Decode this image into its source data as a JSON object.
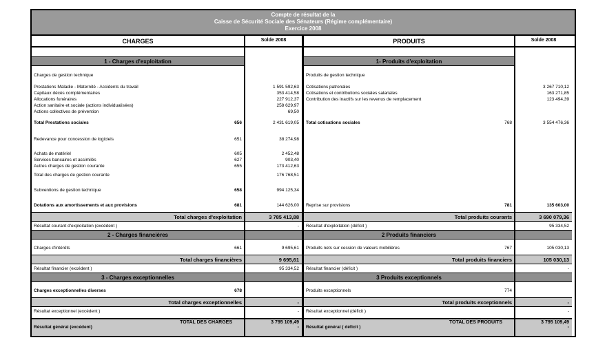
{
  "title": {
    "line1": "Compte de résultat de la",
    "line2": "Caisse de Sécurité Sociale des Sénateurs (Régime complémentaire)",
    "line3": "Exercice 2008"
  },
  "columns": {
    "charges": "CHARGES",
    "solde_left": "Solde 2008",
    "produits": "PRODUITS",
    "solde_right": "Solde 2008"
  },
  "colors": {
    "title_bg": "#9a9a9a",
    "section_bg": "#8f8f8f",
    "total_bg": "#c8c8c8",
    "border": "#000000"
  },
  "rows": [
    {
      "t": "gap",
      "h": 13
    },
    {
      "t": "section",
      "h": 14,
      "full": false,
      "l": {
        "label": "1 - Charges d'exploitation"
      },
      "r": {
        "label": "1- Produits d'exploitation"
      }
    },
    {
      "t": "gap",
      "h": 8
    },
    {
      "t": "item",
      "h": 10,
      "l": {
        "label": "Charges de gestion technique"
      },
      "r": {
        "label": "Produits de gestion technique"
      }
    },
    {
      "t": "gap",
      "h": 8
    },
    {
      "t": "item",
      "h": 9,
      "l": {
        "label": "Prestations Maladie - Maternité - Accidents du travail",
        "value": "1 591 592,63"
      },
      "r": {
        "label": "Cotisations patronales",
        "value": "3 267 710,12"
      }
    },
    {
      "t": "item",
      "h": 9,
      "l": {
        "label": "Capitaux décès complémentaires",
        "value": "353 414,58"
      },
      "r": {
        "label": "Cotisations et contributions sociales salariales",
        "value": "163 271,85"
      }
    },
    {
      "t": "item",
      "h": 9,
      "l": {
        "label": "Allocations funéraires",
        "value": "227 912,37"
      },
      "r": {
        "label": "Contribution des inactifs sur les revenus de remplacement",
        "value": "123 494,39"
      }
    },
    {
      "t": "item",
      "h": 9,
      "l": {
        "label": "Action sanitaire et sociale (actions individualisées)",
        "value": "258 629,97"
      },
      "r": {}
    },
    {
      "t": "item",
      "h": 9,
      "l": {
        "label": "Actions collectives de prévention",
        "value": "69,50"
      },
      "r": {}
    },
    {
      "t": "gap",
      "h": 6
    },
    {
      "t": "item",
      "h": 11,
      "l": {
        "label": "Total Prestations sociales",
        "bold": true,
        "code": "656",
        "boldCode": true,
        "value": "2 431 619,05"
      },
      "r": {
        "label": "Total cotisations sociales",
        "bold": true,
        "code": "768",
        "value": "3 554 476,36"
      }
    },
    {
      "t": "gap",
      "h": 13
    },
    {
      "t": "item",
      "h": 11,
      "l": {
        "label": "Redevance pour concession de logiciels",
        "code": "651",
        "value": "38 274,98"
      },
      "r": {}
    },
    {
      "t": "gap",
      "h": 11
    },
    {
      "t": "item",
      "h": 9,
      "l": {
        "label": "Achats de matériel",
        "code": "605",
        "value": "2 452,48"
      },
      "r": {}
    },
    {
      "t": "item",
      "h": 9,
      "l": {
        "label": "Services bancaires et assimilés",
        "code": "627",
        "value": "903,40"
      },
      "r": {}
    },
    {
      "t": "item",
      "h": 9,
      "l": {
        "label": "Autres charges de gestion courante",
        "code": "655",
        "value": "173 412,63"
      },
      "r": {}
    },
    {
      "t": "gap",
      "h": 3
    },
    {
      "t": "item",
      "h": 11,
      "l": {
        "label": "Total des charges de gestion courante",
        "value": "176 768,51"
      },
      "r": {}
    },
    {
      "t": "gap",
      "h": 11
    },
    {
      "t": "item",
      "h": 11,
      "l": {
        "label": "Subventions de gestion technique",
        "code": "658",
        "boldCode": true,
        "value": "994 125,34"
      },
      "r": {}
    },
    {
      "t": "gap",
      "h": 11
    },
    {
      "t": "item",
      "h": 11,
      "l": {
        "label": "Dotations aux amortissements et aux provisions",
        "bold": true,
        "code": "681",
        "boldCode": true,
        "value": "144 626,00"
      },
      "r": {
        "label": "Reprise sur provisions",
        "code": "781",
        "boldCode": true,
        "value": "135 603,00",
        "boldValue": true
      }
    },
    {
      "t": "gap",
      "h": 4
    },
    {
      "t": "total",
      "h": 14,
      "l": {
        "label": "Total charges d'exploitation",
        "value": "3 785 413,88"
      },
      "r": {
        "label": "Total produits courants",
        "value": "3 690 079,36"
      }
    },
    {
      "t": "item",
      "h": 12,
      "l": {
        "label": "Résultat courant d'exploitation (excédent )",
        "value": "-"
      },
      "r": {
        "label": "Résultat d'exploitation (déficit )",
        "value": "95 334,52"
      }
    },
    {
      "t": "section",
      "h": 14,
      "full": true,
      "l": {
        "label": "2 - Charges financières"
      },
      "r": {
        "label": "2 Produits financiers"
      }
    },
    {
      "t": "gap",
      "h": 7
    },
    {
      "t": "item",
      "h": 11,
      "l": {
        "label": "Charges d'intérêts",
        "code": "661",
        "value": "9 695,61"
      },
      "r": {
        "label": "Produits nets sur cession de valeurs mobilières",
        "code": "767",
        "value": "105 030,13"
      }
    },
    {
      "t": "gap",
      "h": 4
    },
    {
      "t": "total",
      "h": 14,
      "l": {
        "label": "Total charges financières",
        "value": "9 695,61"
      },
      "r": {
        "label": "Total produits financiers",
        "value": "105 030,13"
      }
    },
    {
      "t": "item",
      "h": 12,
      "l": {
        "label": "Résultat financier (excédent )",
        "value": "95 334,52"
      },
      "r": {
        "label": "Résultat financier (déficit )",
        "value": "-"
      }
    },
    {
      "t": "section",
      "h": 14,
      "full": true,
      "l": {
        "label": "3 - Charges exceptionnelles"
      },
      "r": {
        "label": "3 Produits exceptionnels"
      }
    },
    {
      "t": "gap",
      "h": 7
    },
    {
      "t": "item",
      "h": 11,
      "l": {
        "label": "Charges exceptionnelles diverses",
        "bold": true,
        "code": "678",
        "boldCode": true
      },
      "r": {
        "label": "Produits exceptionnels",
        "code": "774"
      }
    },
    {
      "t": "gap",
      "h": 4
    },
    {
      "t": "total",
      "h": 14,
      "l": {
        "label": "Total charges exceptionnelles",
        "value": "-"
      },
      "r": {
        "label": "Total produits exceptionnels",
        "value": "-"
      }
    },
    {
      "t": "item",
      "h": 12,
      "l": {
        "label": "Résultat exceptionnel (excédent )",
        "value": "-"
      },
      "r": {
        "label": "Résultat exceptionnel (déficit )",
        "value": "-"
      }
    },
    {
      "t": "gap",
      "h": 4
    },
    {
      "t": "grand",
      "h": 26,
      "l": {
        "top": "TOTAL DES CHARGES",
        "topValue": "3 795 109,49",
        "bottom": "Résultat général (excédent)",
        "bottomValue": "-"
      },
      "r": {
        "top": "TOTAL DES PRODUITS",
        "topValue": "3 795 109,49",
        "bottom": "Résultat général ( déficit )",
        "bottomValue": "-"
      }
    }
  ]
}
